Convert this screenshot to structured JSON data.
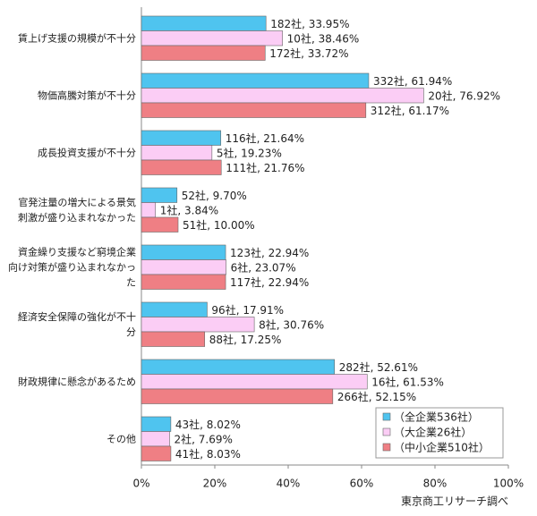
{
  "chart_data": {
    "type": "bar",
    "orientation": "horizontal",
    "categories": [
      "賃上げ支援の規模が不十分",
      "物価高騰対策が不十分",
      "成長投資支援が不十分",
      "官発注量の増大による景気\n刺激が盛り込まれなかった",
      "資金繰り支援など窮境企業\n向け対策が盛り込まれなかっ\nた",
      "経済安全保障の強化が不十\n分",
      "財政規律に懸念があるため",
      "その他"
    ],
    "series": [
      {
        "name": "（全企業536社）",
        "color": "#4fc4ef",
        "values": [
          33.95,
          61.94,
          21.64,
          9.7,
          22.94,
          17.91,
          52.61,
          8.02
        ],
        "value_labels": [
          "182社, 33.95%",
          "332社, 61.94%",
          "116社, 21.64%",
          "52社, 9.70%",
          "123社, 22.94%",
          "96社, 17.91%",
          "282社, 52.61%",
          "43社, 8.02%"
        ]
      },
      {
        "name": "（大企業26社）",
        "color": "#fbcdf5",
        "values": [
          38.46,
          76.92,
          19.23,
          3.84,
          23.07,
          30.76,
          61.53,
          7.69
        ],
        "value_labels": [
          "10社, 38.46%",
          "20社, 76.92%",
          "5社, 19.23%",
          "1社, 3.84%",
          "6社, 23.07%",
          "8社, 30.76%",
          "16社, 61.53%",
          "2社, 7.69%"
        ]
      },
      {
        "name": "（中小企業510社）",
        "color": "#ef7f84",
        "values": [
          33.72,
          61.17,
          21.76,
          10.0,
          22.94,
          17.25,
          52.15,
          8.03
        ],
        "value_labels": [
          "172社, 33.72%",
          "312社, 61.17%",
          "111社, 21.76%",
          "51社, 10.00%",
          "117社, 22.94%",
          "88社, 17.25%",
          "266社, 52.15%",
          "41社, 8.03%"
        ]
      }
    ],
    "xlim": [
      0,
      100
    ],
    "xticks": [
      {
        "value": 0,
        "label": "0%"
      },
      {
        "value": 20,
        "label": "20%"
      },
      {
        "value": 40,
        "label": "40%"
      },
      {
        "value": 60,
        "label": "60%"
      },
      {
        "value": 80,
        "label": "80%"
      },
      {
        "value": 100,
        "label": "100%"
      }
    ],
    "legend": "lower right",
    "source": "東京商工リサーチ調べ"
  }
}
